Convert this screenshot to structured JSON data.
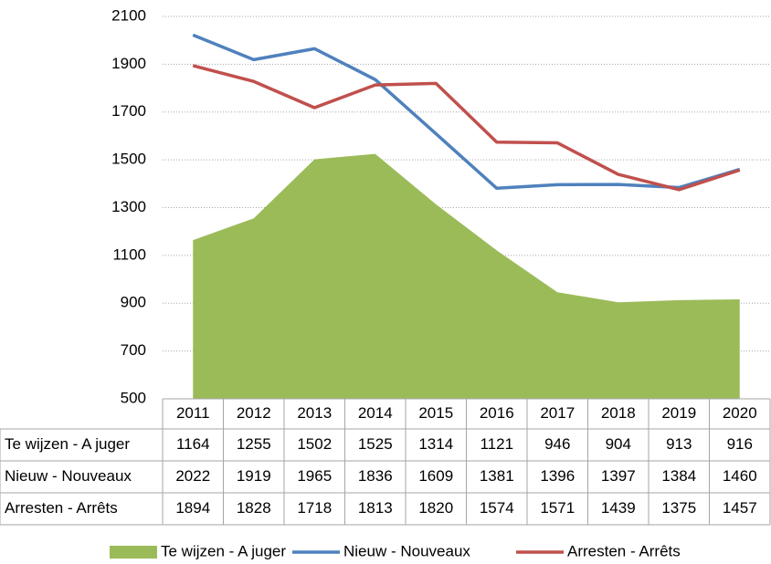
{
  "chart_data": {
    "type": "line",
    "categories": [
      "2011",
      "2012",
      "2013",
      "2014",
      "2015",
      "2016",
      "2017",
      "2018",
      "2019",
      "2020"
    ],
    "series": [
      {
        "name": "Te wijzen - A juger",
        "type": "area",
        "color": "#9bbb59",
        "values": [
          1164,
          1255,
          1502,
          1525,
          1314,
          1121,
          946,
          904,
          913,
          916
        ]
      },
      {
        "name": "Nieuw - Nouveaux",
        "type": "line",
        "color": "#4f81bd",
        "values": [
          2022,
          1919,
          1965,
          1836,
          1609,
          1381,
          1396,
          1397,
          1384,
          1460
        ]
      },
      {
        "name": "Arresten - Arrêts",
        "type": "line",
        "color": "#c0504d",
        "values": [
          1894,
          1828,
          1718,
          1813,
          1820,
          1574,
          1571,
          1439,
          1375,
          1457
        ]
      }
    ],
    "ylim": [
      500,
      2100
    ],
    "yticks": [
      500,
      700,
      900,
      1100,
      1300,
      1500,
      1700,
      1900,
      2100
    ],
    "grid": true,
    "legend": "bottom",
    "data_table": true
  }
}
